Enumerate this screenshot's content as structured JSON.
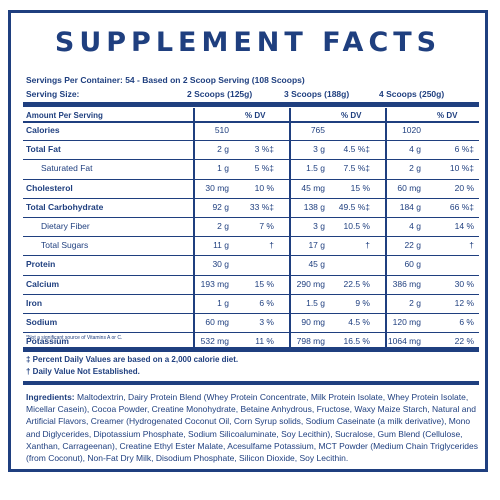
{
  "title": "SUPPLEMENT FACTS",
  "servings_per_container": "Servings Per Container: 54 - Based on 2 Scoop Serving (108 Scoops)",
  "serving_size_label": "Serving Size:",
  "serving_sizes": [
    "2 Scoops (125g)",
    "3 Scoops (188g)",
    "4 Scoops (250g)"
  ],
  "table_header": {
    "amount": "Amount Per Serving",
    "dv": "% DV"
  },
  "rows": [
    {
      "label": "Calories",
      "v": [
        "510",
        "765",
        "1020"
      ],
      "dv": [
        "",
        "",
        ""
      ],
      "style": "bold"
    },
    {
      "label": "Total Fat",
      "v": [
        "2 g",
        "3 g",
        "4 g"
      ],
      "dv": [
        "3 %‡",
        "4.5 %‡",
        "6 %‡"
      ],
      "style": "bold"
    },
    {
      "label": "Saturated Fat",
      "v": [
        "1 g",
        "1.5 g",
        "2 g"
      ],
      "dv": [
        "5 %‡",
        "7.5 %‡",
        "10 %‡"
      ],
      "style": "indent"
    },
    {
      "label": "Cholesterol",
      "v": [
        "30 mg",
        "45 mg",
        "60 mg"
      ],
      "dv": [
        "10 %",
        "15 %",
        "20 %"
      ],
      "style": "bold"
    },
    {
      "label": "Total Carbohydrate",
      "v": [
        "92 g",
        "138 g",
        "184 g"
      ],
      "dv": [
        "33 %‡",
        "49.5 %‡",
        "66 %‡"
      ],
      "style": "bold"
    },
    {
      "label": "Dietary Fiber",
      "v": [
        "2 g",
        "3 g",
        "4 g"
      ],
      "dv": [
        "7 %",
        "10.5 %",
        "14 %"
      ],
      "style": "indent"
    },
    {
      "label": "Total Sugars",
      "v": [
        "11 g",
        "17 g",
        "22 g"
      ],
      "dv": [
        "†",
        "†",
        "†"
      ],
      "style": "indent"
    },
    {
      "label": "Protein",
      "v": [
        "30 g",
        "45 g",
        "60 g"
      ],
      "dv": [
        "",
        "",
        ""
      ],
      "style": "bold"
    },
    {
      "label": "Calcium",
      "v": [
        "193 mg",
        "290 mg",
        "386 mg"
      ],
      "dv": [
        "15 %",
        "22.5 %",
        "30 %"
      ],
      "style": "bold"
    },
    {
      "label": "Iron",
      "v": [
        "1 g",
        "1.5 g",
        "2 g"
      ],
      "dv": [
        "6 %",
        "9 %",
        "12 %"
      ],
      "style": "bold"
    },
    {
      "label": "Sodium",
      "v": [
        "60 mg",
        "90 mg",
        "120 mg"
      ],
      "dv": [
        "3 %",
        "4.5 %",
        "6 %"
      ],
      "style": "bold"
    },
    {
      "label": "Potassium",
      "v": [
        "532 mg",
        "798 mg",
        "1064 mg"
      ],
      "dv": [
        "11 %",
        "16.5 %",
        "22 %"
      ],
      "style": "bold"
    }
  ],
  "note": "*Not a significant source of Vitamins A or C.",
  "footnote_1": "‡ Percent Daily Values are based on a 2,000 calorie diet.",
  "footnote_2": "† Daily Value Not Established.",
  "ingredients_label": "Ingredients:",
  "ingredients_text": "Maltodextrin, Dairy Protein Blend (Whey Protein Concentrate, Milk Protein Isolate, Whey Protein Isolate, Micellar Casein), Cocoa Powder, Creatine Monohydrate, Betaine Anhydrous, Fructose, Waxy Maize Starch, Natural and Artificial Flavors, Creamer (Hydrogenated Coconut Oil, Corn Syrup solids, Sodium Caseinate (a milk derivative), Mono and Diglycerides, Dipotassium Phosphate, Sodium Silicoaluminate, Soy Lecithin), Sucralose, Gum Blend (Cellulose, Xanthan, Carrageenan), Creatine Ethyl Ester Malate, Acesulfame Potassium, MCT Powder (Medium Chain Triglycerides (from Coconut), Non-Fat Dry Milk, Disodium Phosphate, Silicon Dioxide, Soy Lecithin.",
  "colors": {
    "label_blue": "#1f3f7f",
    "background": "#ffffff"
  }
}
